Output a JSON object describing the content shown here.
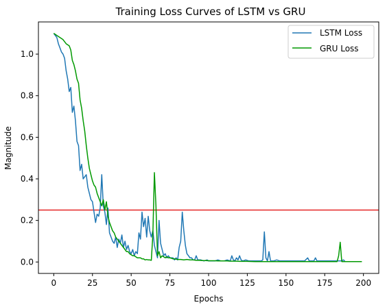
{
  "chart_data": {
    "type": "line",
    "title": "Training Loss Curves of LSTM vs GRU",
    "xlabel": "Epochs",
    "ylabel": "Magnitude",
    "xlim": [
      -9.9,
      209.9
    ],
    "ylim": [
      -0.055,
      1.155
    ],
    "xticks": [
      0,
      25,
      50,
      75,
      100,
      125,
      150,
      175,
      200
    ],
    "yticks": [
      0.0,
      0.2,
      0.4,
      0.6,
      0.8,
      1.0
    ],
    "ytick_labels": [
      "0.0",
      "0.2",
      "0.4",
      "0.6",
      "0.8",
      "1.0"
    ],
    "grid": false,
    "legend_position": "top-right",
    "hline": {
      "y": 0.25,
      "color": "#e00000"
    },
    "series": [
      {
        "name": "LSTM Loss",
        "color": "#1f77b4",
        "points": [
          [
            0,
            1.1
          ],
          [
            2,
            1.08
          ],
          [
            3,
            1.05
          ],
          [
            4,
            1.03
          ],
          [
            5,
            1.01
          ],
          [
            6,
            1.0
          ],
          [
            7,
            0.98
          ],
          [
            8,
            0.92
          ],
          [
            9,
            0.88
          ],
          [
            10,
            0.82
          ],
          [
            11,
            0.84
          ],
          [
            12,
            0.72
          ],
          [
            13,
            0.75
          ],
          [
            14,
            0.68
          ],
          [
            15,
            0.58
          ],
          [
            16,
            0.56
          ],
          [
            17,
            0.44
          ],
          [
            18,
            0.47
          ],
          [
            19,
            0.4
          ],
          [
            20,
            0.41
          ],
          [
            21,
            0.42
          ],
          [
            22,
            0.36
          ],
          [
            23,
            0.33
          ],
          [
            24,
            0.3
          ],
          [
            25,
            0.29
          ],
          [
            26,
            0.24
          ],
          [
            27,
            0.19
          ],
          [
            28,
            0.23
          ],
          [
            29,
            0.22
          ],
          [
            30,
            0.26
          ],
          [
            31,
            0.42
          ],
          [
            32,
            0.27
          ],
          [
            33,
            0.24
          ],
          [
            34,
            0.18
          ],
          [
            35,
            0.26
          ],
          [
            36,
            0.14
          ],
          [
            37,
            0.12
          ],
          [
            38,
            0.1
          ],
          [
            39,
            0.09
          ],
          [
            40,
            0.12
          ],
          [
            41,
            0.07
          ],
          [
            42,
            0.11
          ],
          [
            43,
            0.09
          ],
          [
            44,
            0.13
          ],
          [
            45,
            0.07
          ],
          [
            46,
            0.1
          ],
          [
            47,
            0.06
          ],
          [
            48,
            0.08
          ],
          [
            49,
            0.05
          ],
          [
            50,
            0.04
          ],
          [
            51,
            0.06
          ],
          [
            52,
            0.03
          ],
          [
            53,
            0.05
          ],
          [
            54,
            0.04
          ],
          [
            55,
            0.14
          ],
          [
            56,
            0.11
          ],
          [
            57,
            0.24
          ],
          [
            58,
            0.17
          ],
          [
            59,
            0.21
          ],
          [
            60,
            0.12
          ],
          [
            61,
            0.22
          ],
          [
            62,
            0.15
          ],
          [
            63,
            0.12
          ],
          [
            64,
            0.15
          ],
          [
            65,
            0.08
          ],
          [
            66,
            0.05
          ],
          [
            67,
            0.02
          ],
          [
            68,
            0.2
          ],
          [
            69,
            0.09
          ],
          [
            70,
            0.06
          ],
          [
            71,
            0.03
          ],
          [
            72,
            0.04
          ],
          [
            73,
            0.02
          ],
          [
            74,
            0.03
          ],
          [
            75,
            0.02
          ],
          [
            76,
            0.02
          ],
          [
            77,
            0.02
          ],
          [
            78,
            0.01
          ],
          [
            79,
            0.02
          ],
          [
            80,
            0.01
          ],
          [
            81,
            0.07
          ],
          [
            82,
            0.1
          ],
          [
            83,
            0.24
          ],
          [
            84,
            0.15
          ],
          [
            85,
            0.08
          ],
          [
            86,
            0.04
          ],
          [
            87,
            0.03
          ],
          [
            88,
            0.02
          ],
          [
            89,
            0.02
          ],
          [
            90,
            0.01
          ],
          [
            91,
            0.01
          ],
          [
            92,
            0.03
          ],
          [
            93,
            0.01
          ],
          [
            95,
            0.01
          ],
          [
            97,
            0.005
          ],
          [
            99,
            0.01
          ],
          [
            100,
            0.005
          ],
          [
            102,
            0.005
          ],
          [
            104,
            0.005
          ],
          [
            106,
            0.01
          ],
          [
            108,
            0.005
          ],
          [
            110,
            0.005
          ],
          [
            112,
            0.01
          ],
          [
            114,
            0.005
          ],
          [
            115,
            0.03
          ],
          [
            116,
            0.01
          ],
          [
            117,
            0.005
          ],
          [
            118,
            0.02
          ],
          [
            119,
            0.01
          ],
          [
            120,
            0.03
          ],
          [
            121,
            0.01
          ],
          [
            122,
            0.005
          ],
          [
            124,
            0.01
          ],
          [
            126,
            0.005
          ],
          [
            128,
            0.005
          ],
          [
            130,
            0.005
          ],
          [
            132,
            0.005
          ],
          [
            134,
            0.005
          ],
          [
            135,
            0.01
          ],
          [
            136,
            0.145
          ],
          [
            137,
            0.02
          ],
          [
            138,
            0.005
          ],
          [
            139,
            0.05
          ],
          [
            140,
            0.005
          ],
          [
            142,
            0.005
          ],
          [
            144,
            0.01
          ],
          [
            146,
            0.005
          ],
          [
            148,
            0.005
          ],
          [
            150,
            0.005
          ],
          [
            152,
            0.005
          ],
          [
            154,
            0.005
          ],
          [
            156,
            0.005
          ],
          [
            158,
            0.005
          ],
          [
            160,
            0.005
          ],
          [
            162,
            0.005
          ],
          [
            164,
            0.02
          ],
          [
            165,
            0.005
          ],
          [
            166,
            0.005
          ],
          [
            168,
            0.005
          ],
          [
            169,
            0.02
          ],
          [
            170,
            0.005
          ],
          [
            172,
            0.005
          ],
          [
            174,
            0.005
          ],
          [
            176,
            0.005
          ],
          [
            178,
            0.005
          ],
          [
            180,
            0.005
          ],
          [
            182,
            0.005
          ],
          [
            184,
            0.005
          ],
          [
            186,
            0.005
          ],
          [
            187,
            0.01
          ],
          [
            188,
            0.005
          ]
        ]
      },
      {
        "name": "GRU Loss",
        "color": "#009900",
        "points": [
          [
            0,
            1.1
          ],
          [
            2,
            1.09
          ],
          [
            4,
            1.08
          ],
          [
            6,
            1.07
          ],
          [
            8,
            1.05
          ],
          [
            10,
            1.04
          ],
          [
            11,
            1.02
          ],
          [
            12,
            0.97
          ],
          [
            13,
            0.95
          ],
          [
            14,
            0.92
          ],
          [
            15,
            0.88
          ],
          [
            16,
            0.86
          ],
          [
            17,
            0.78
          ],
          [
            18,
            0.74
          ],
          [
            19,
            0.68
          ],
          [
            20,
            0.63
          ],
          [
            21,
            0.56
          ],
          [
            22,
            0.5
          ],
          [
            23,
            0.45
          ],
          [
            24,
            0.42
          ],
          [
            25,
            0.39
          ],
          [
            26,
            0.37
          ],
          [
            27,
            0.36
          ],
          [
            28,
            0.33
          ],
          [
            29,
            0.31
          ],
          [
            30,
            0.29
          ],
          [
            31,
            0.27
          ],
          [
            32,
            0.3
          ],
          [
            33,
            0.25
          ],
          [
            34,
            0.29
          ],
          [
            35,
            0.22
          ],
          [
            36,
            0.19
          ],
          [
            37,
            0.17
          ],
          [
            38,
            0.15
          ],
          [
            39,
            0.14
          ],
          [
            40,
            0.12
          ],
          [
            41,
            0.11
          ],
          [
            42,
            0.1
          ],
          [
            43,
            0.09
          ],
          [
            44,
            0.08
          ],
          [
            45,
            0.07
          ],
          [
            46,
            0.06
          ],
          [
            47,
            0.05
          ],
          [
            48,
            0.05
          ],
          [
            49,
            0.04
          ],
          [
            50,
            0.035
          ],
          [
            51,
            0.03
          ],
          [
            52,
            0.03
          ],
          [
            53,
            0.025
          ],
          [
            54,
            0.02
          ],
          [
            55,
            0.02
          ],
          [
            56,
            0.02
          ],
          [
            57,
            0.015
          ],
          [
            58,
            0.015
          ],
          [
            59,
            0.01
          ],
          [
            60,
            0.012
          ],
          [
            61,
            0.01
          ],
          [
            62,
            0.01
          ],
          [
            63,
            0.008
          ],
          [
            64,
            0.13
          ],
          [
            65,
            0.43
          ],
          [
            66,
            0.27
          ],
          [
            67,
            0.03
          ],
          [
            68,
            0.05
          ],
          [
            69,
            0.02
          ],
          [
            70,
            0.03
          ],
          [
            71,
            0.025
          ],
          [
            72,
            0.02
          ],
          [
            73,
            0.025
          ],
          [
            74,
            0.02
          ],
          [
            75,
            0.02
          ],
          [
            76,
            0.018
          ],
          [
            77,
            0.015
          ],
          [
            78,
            0.015
          ],
          [
            80,
            0.012
          ],
          [
            82,
            0.012
          ],
          [
            84,
            0.01
          ],
          [
            86,
            0.012
          ],
          [
            88,
            0.01
          ],
          [
            90,
            0.01
          ],
          [
            92,
            0.008
          ],
          [
            94,
            0.008
          ],
          [
            96,
            0.007
          ],
          [
            98,
            0.007
          ],
          [
            100,
            0.006
          ],
          [
            102,
            0.006
          ],
          [
            104,
            0.006
          ],
          [
            106,
            0.005
          ],
          [
            108,
            0.005
          ],
          [
            110,
            0.005
          ],
          [
            112,
            0.005
          ],
          [
            114,
            0.004
          ],
          [
            116,
            0.004
          ],
          [
            118,
            0.004
          ],
          [
            120,
            0.003
          ],
          [
            125,
            0.003
          ],
          [
            130,
            0.002
          ],
          [
            135,
            0.002
          ],
          [
            140,
            0.002
          ],
          [
            145,
            0.002
          ],
          [
            150,
            0.002
          ],
          [
            155,
            0.002
          ],
          [
            160,
            0.002
          ],
          [
            165,
            0.002
          ],
          [
            170,
            0.002
          ],
          [
            175,
            0.002
          ],
          [
            180,
            0.002
          ],
          [
            182,
            0.002
          ],
          [
            183,
            0.002
          ],
          [
            184,
            0.03
          ],
          [
            185,
            0.095
          ],
          [
            186,
            0.002
          ],
          [
            188,
            0.002
          ],
          [
            190,
            0.002
          ],
          [
            195,
            0.002
          ],
          [
            199,
            0.002
          ]
        ]
      }
    ]
  }
}
